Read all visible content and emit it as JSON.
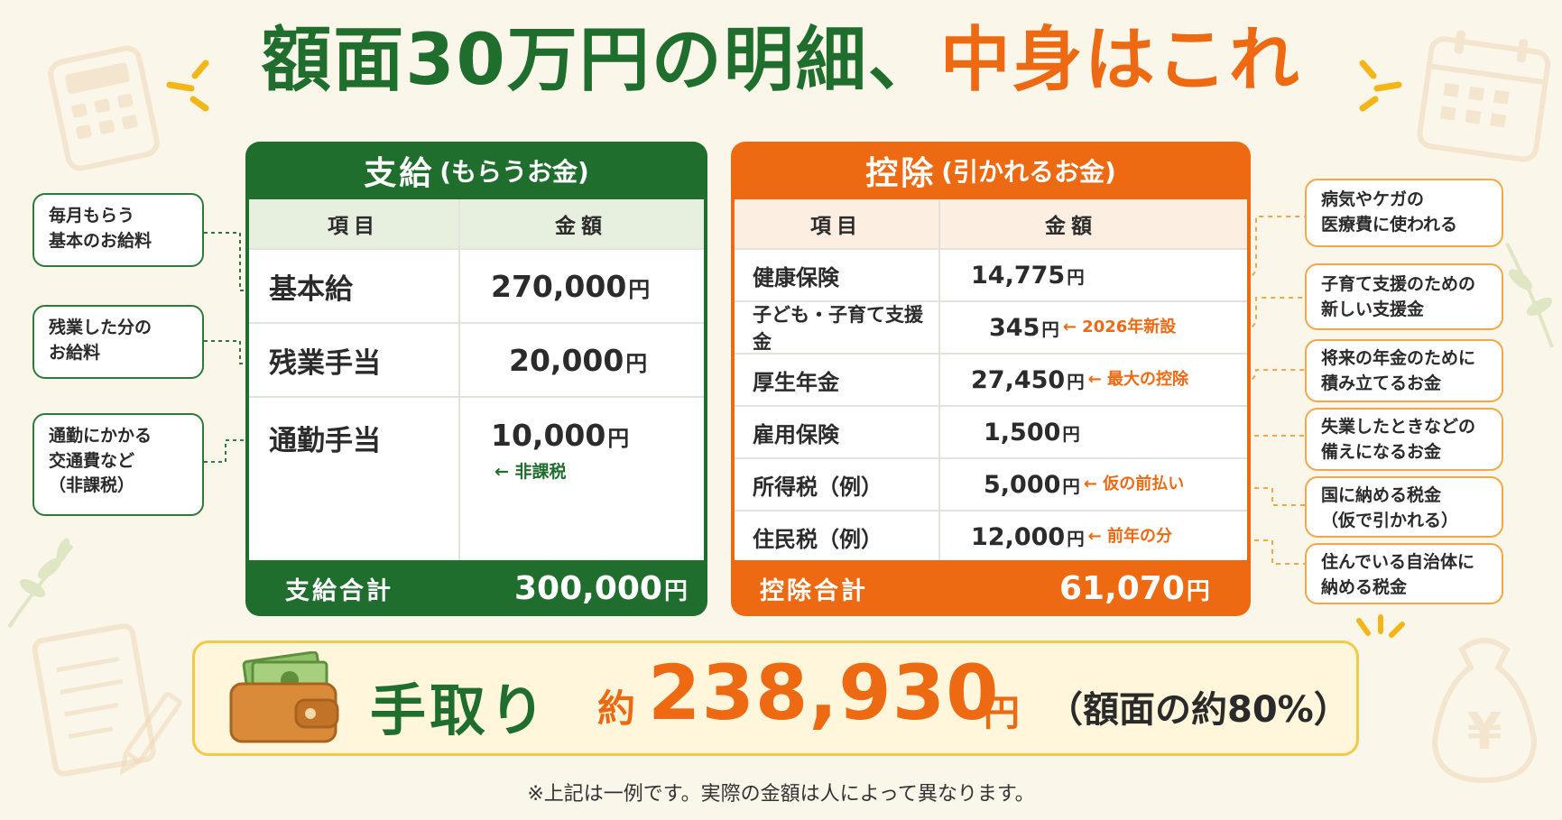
{
  "title": {
    "part1": "額面30万円の明細、",
    "part2": "中身はこれ"
  },
  "payments": {
    "heading": "支給",
    "heading_sub": "(もらうお金)",
    "col_item": "項目",
    "col_amount": "金額",
    "rows": [
      {
        "item": "基本給",
        "amount": "270,000",
        "unit": "円",
        "note": ""
      },
      {
        "item": "残業手当",
        "amount": "20,000",
        "unit": "円",
        "note": ""
      },
      {
        "item": "通勤手当",
        "amount": "10,000",
        "unit": "円",
        "note": "← 非課税"
      }
    ],
    "total_label": "支給合計",
    "total_amount": "300,000",
    "total_unit": "円"
  },
  "deductions": {
    "heading": "控除",
    "heading_sub": "(引かれるお金)",
    "col_item": "項目",
    "col_amount": "金額",
    "rows": [
      {
        "item": "健康保険",
        "amount": "14,775",
        "unit": "円",
        "note": ""
      },
      {
        "item": "子ども・子育て支援金",
        "amount": "345",
        "unit": "円",
        "note": "← 2026年新設"
      },
      {
        "item": "厚生年金",
        "amount": "27,450",
        "unit": "円",
        "note": "← 最大の控除"
      },
      {
        "item": "雇用保険",
        "amount": "1,500",
        "unit": "円",
        "note": ""
      },
      {
        "item": "所得税（例）",
        "amount": "5,000",
        "unit": "円",
        "note": "← 仮の前払い"
      },
      {
        "item": "住民税（例）",
        "amount": "12,000",
        "unit": "円",
        "note": "← 前年の分"
      }
    ],
    "total_label": "控除合計",
    "total_amount": "61,070",
    "total_unit": "円"
  },
  "left_callouts": [
    {
      "line1": "毎月もらう",
      "line2": "基本のお給料",
      "line3": ""
    },
    {
      "line1": "残業した分の",
      "line2": "お給料",
      "line3": ""
    },
    {
      "line1": "通勤にかかる",
      "line2": "交通費など",
      "line3": "（非課税）"
    }
  ],
  "right_callouts": [
    {
      "line1": "病気やケガの",
      "line2": "医療費に使われる"
    },
    {
      "line1": "子育て支援のための",
      "line2": "新しい支援金"
    },
    {
      "line1": "将来の年金のために",
      "line2": "積み立てるお金"
    },
    {
      "line1": "失業したときなどの",
      "line2": "備えになるお金"
    },
    {
      "line1": "国に納める税金",
      "line2": "（仮で引かれる）"
    },
    {
      "line1": "住んでいる自治体に",
      "line2": "納める税金"
    }
  ],
  "net_pay": {
    "label": "手取り",
    "approx": "約",
    "value": "238,930",
    "unit": "円",
    "note": "（額面の約80%）"
  },
  "footnote": "※上記は一例です。実際の金額は人によって異なります。",
  "icons": [
    "calculator-icon",
    "calendar-icon",
    "leaf-icon",
    "document-icon",
    "pencil-icon",
    "money-bag-icon",
    "wallet-icon"
  ],
  "colors": {
    "green": "#1f6e2e",
    "orange": "#ee6a12",
    "background": "#fbf6ea",
    "highlight": "#f3c94a"
  }
}
